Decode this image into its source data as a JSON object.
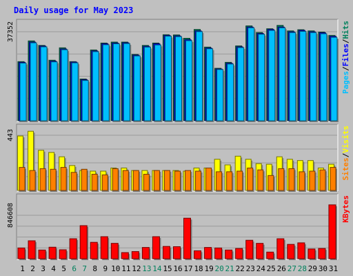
{
  "colors": {
    "background": "#c0c0c0",
    "title": "#0000ff",
    "hits": "#00805c",
    "files": "#0000ff",
    "pages": "#00bfff",
    "visits": "#ffff00",
    "sites": "#ff8000",
    "kbytes": "#ff0000",
    "weekend_label": "#00805c",
    "weekday_label": "#000000"
  },
  "chart_data": {
    "type": "bar",
    "title": "Daily usage for May 2023",
    "categories": [
      "1",
      "2",
      "3",
      "4",
      "5",
      "6",
      "7",
      "8",
      "9",
      "10",
      "11",
      "12",
      "13",
      "14",
      "15",
      "16",
      "17",
      "18",
      "19",
      "20",
      "21",
      "22",
      "23",
      "24",
      "25",
      "26",
      "27",
      "28",
      "29",
      "30",
      "31"
    ],
    "weekend_days": [
      "6",
      "7",
      "13",
      "14",
      "20",
      "21",
      "27",
      "28"
    ],
    "panels": [
      {
        "id": "hits",
        "ymax_label": "37352",
        "ymax": 37352,
        "legend": [
          "Pages",
          "/",
          "Files",
          "/",
          "Hits"
        ],
        "series": [
          {
            "name": "Hits",
            "values": [
              24800,
              33500,
              31600,
              25400,
              30600,
              24800,
              17500,
              29700,
              32600,
              33000,
              33000,
              27800,
              31600,
              32600,
              36100,
              36000,
              34600,
              38300,
              30900,
              22000,
              24500,
              31400,
              39800,
              37000,
              38600,
              40000,
              37700,
              38200,
              37700,
              37200,
              35800
            ]
          },
          {
            "name": "Files",
            "values": [
              24500,
              33000,
              31300,
              25000,
              30100,
              24600,
              17200,
              29300,
              32300,
              32600,
              32700,
              27500,
              31200,
              32300,
              35800,
              35600,
              34000,
              37700,
              30500,
              21700,
              24100,
              31000,
              39300,
              36600,
              38300,
              39300,
              37300,
              37900,
              37300,
              36900,
              35400
            ]
          },
          {
            "name": "Pages",
            "values": [
              24200,
              32700,
              31000,
              24700,
              29800,
              24300,
              16900,
              29000,
              31900,
              32300,
              32400,
              27200,
              30900,
              31800,
              35500,
              35300,
              33600,
              37400,
              30200,
              21500,
              23800,
              30700,
              39000,
              36300,
              37900,
              39000,
              37000,
              37500,
              37000,
              36500,
              35000
            ]
          }
        ]
      },
      {
        "id": "visits",
        "ymax_label": "443",
        "ymax": 443,
        "legend": [
          "Sites",
          "/",
          "Visits"
        ],
        "series": [
          {
            "name": "Visits",
            "values": [
              437,
              475,
              322,
              305,
              270,
              200,
              160,
              155,
              155,
              180,
              180,
              160,
              160,
              160,
              160,
              160,
              155,
              180,
              180,
              250,
              205,
              275,
              250,
              215,
              210,
              270,
              250,
              240,
              240,
              180,
              210
            ]
          },
          {
            "name": "Sites",
            "values": [
              185,
              160,
              175,
              170,
              185,
              145,
              170,
              130,
              125,
              175,
              160,
              160,
              130,
              160,
              160,
              155,
              160,
              155,
              180,
              150,
              150,
              155,
              180,
              165,
              120,
              175,
              175,
              150,
              155,
              165,
              185
            ]
          }
        ]
      },
      {
        "id": "kbytes",
        "ymax_label": "846608",
        "ymax": 846608,
        "legend": [
          "KBytes"
        ],
        "series": [
          {
            "name": "KBytes",
            "values": [
              210000,
              350000,
              170000,
              225000,
              175000,
              390000,
              645000,
              320000,
              430000,
              300000,
              120000,
              140000,
              220000,
              430000,
              240000,
              235000,
              790000,
              155000,
              220000,
              210000,
              170000,
              200000,
              360000,
              300000,
              130000,
              390000,
              280000,
              310000,
              190000,
              200000,
              1050000
            ]
          }
        ]
      }
    ]
  }
}
